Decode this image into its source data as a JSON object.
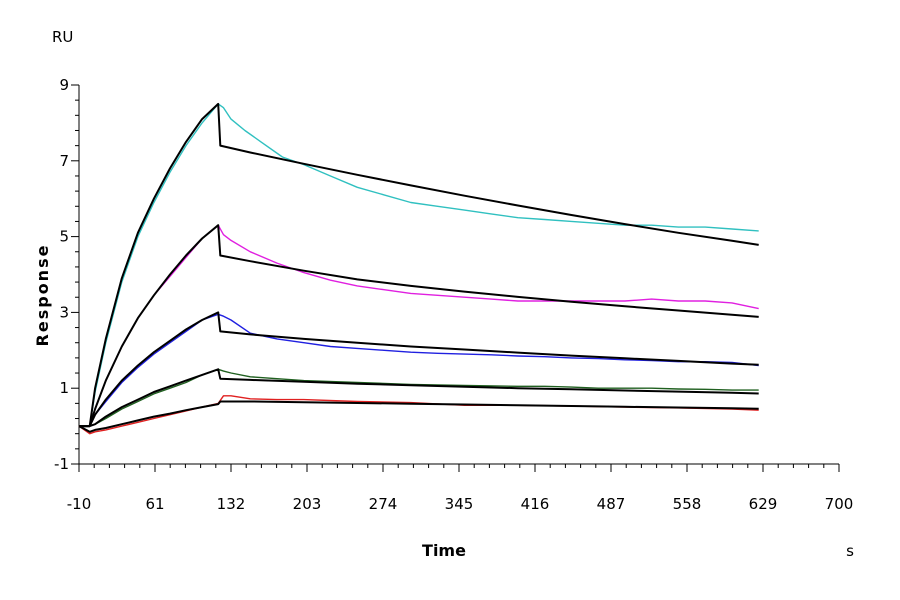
{
  "chart_data": {
    "type": "line",
    "xlabel": "Time",
    "ylabel": "Response",
    "y_unit": "RU",
    "x_unit": "s",
    "xlim": [
      -10,
      700
    ],
    "ylim": [
      -1,
      9
    ],
    "x_ticks": [
      -10,
      61,
      132,
      203,
      274,
      345,
      416,
      487,
      558,
      629,
      700
    ],
    "y_ticks": [
      -1,
      1,
      3,
      5,
      7,
      9
    ],
    "grid": false,
    "legend": "none",
    "series": [
      {
        "color": "#30c0c0",
        "kind": "measured",
        "points": [
          [
            -10,
            0
          ],
          [
            0,
            0
          ],
          [
            5,
            0.9
          ],
          [
            15,
            2.2
          ],
          [
            30,
            3.8
          ],
          [
            45,
            5.0
          ],
          [
            60,
            5.9
          ],
          [
            75,
            6.7
          ],
          [
            90,
            7.4
          ],
          [
            105,
            8.0
          ],
          [
            120,
            8.5
          ],
          [
            125,
            8.4
          ],
          [
            132,
            8.1
          ],
          [
            145,
            7.8
          ],
          [
            160,
            7.5
          ],
          [
            180,
            7.1
          ],
          [
            200,
            6.9
          ],
          [
            225,
            6.6
          ],
          [
            250,
            6.3
          ],
          [
            275,
            6.1
          ],
          [
            300,
            5.9
          ],
          [
            325,
            5.8
          ],
          [
            350,
            5.7
          ],
          [
            375,
            5.6
          ],
          [
            400,
            5.5
          ],
          [
            425,
            5.45
          ],
          [
            450,
            5.4
          ],
          [
            475,
            5.35
          ],
          [
            500,
            5.3
          ],
          [
            525,
            5.3
          ],
          [
            550,
            5.25
          ],
          [
            575,
            5.25
          ],
          [
            600,
            5.2
          ],
          [
            625,
            5.15
          ]
        ]
      },
      {
        "color": "#000000",
        "kind": "fit",
        "points": [
          [
            -10,
            0
          ],
          [
            0,
            0
          ],
          [
            5,
            1.0
          ],
          [
            15,
            2.3
          ],
          [
            30,
            3.9
          ],
          [
            45,
            5.1
          ],
          [
            60,
            6.0
          ],
          [
            75,
            6.8
          ],
          [
            90,
            7.5
          ],
          [
            105,
            8.1
          ],
          [
            120,
            8.5
          ],
          [
            122,
            7.4
          ],
          [
            150,
            7.22
          ],
          [
            200,
            6.92
          ],
          [
            250,
            6.63
          ],
          [
            300,
            6.35
          ],
          [
            350,
            6.08
          ],
          [
            400,
            5.82
          ],
          [
            450,
            5.57
          ],
          [
            500,
            5.33
          ],
          [
            550,
            5.1
          ],
          [
            600,
            4.89
          ],
          [
            625,
            4.78
          ]
        ]
      },
      {
        "color": "#e020e0",
        "kind": "measured",
        "points": [
          [
            -10,
            0
          ],
          [
            0,
            0
          ],
          [
            5,
            0.45
          ],
          [
            15,
            1.2
          ],
          [
            30,
            2.1
          ],
          [
            45,
            2.85
          ],
          [
            60,
            3.45
          ],
          [
            75,
            3.95
          ],
          [
            90,
            4.45
          ],
          [
            105,
            4.95
          ],
          [
            120,
            5.3
          ],
          [
            125,
            5.05
          ],
          [
            132,
            4.9
          ],
          [
            150,
            4.6
          ],
          [
            175,
            4.3
          ],
          [
            200,
            4.05
          ],
          [
            225,
            3.85
          ],
          [
            250,
            3.7
          ],
          [
            275,
            3.6
          ],
          [
            300,
            3.5
          ],
          [
            325,
            3.45
          ],
          [
            350,
            3.4
          ],
          [
            375,
            3.35
          ],
          [
            400,
            3.3
          ],
          [
            425,
            3.3
          ],
          [
            450,
            3.3
          ],
          [
            475,
            3.3
          ],
          [
            500,
            3.3
          ],
          [
            525,
            3.35
          ],
          [
            550,
            3.3
          ],
          [
            575,
            3.3
          ],
          [
            600,
            3.25
          ],
          [
            625,
            3.1
          ]
        ]
      },
      {
        "color": "#000000",
        "kind": "fit",
        "points": [
          [
            -10,
            0
          ],
          [
            0,
            0
          ],
          [
            5,
            0.45
          ],
          [
            15,
            1.2
          ],
          [
            30,
            2.1
          ],
          [
            45,
            2.85
          ],
          [
            60,
            3.45
          ],
          [
            75,
            4.0
          ],
          [
            90,
            4.5
          ],
          [
            105,
            4.95
          ],
          [
            120,
            5.3
          ],
          [
            122,
            4.5
          ],
          [
            150,
            4.35
          ],
          [
            200,
            4.1
          ],
          [
            250,
            3.87
          ],
          [
            300,
            3.7
          ],
          [
            350,
            3.55
          ],
          [
            400,
            3.41
          ],
          [
            450,
            3.28
          ],
          [
            500,
            3.16
          ],
          [
            550,
            3.05
          ],
          [
            600,
            2.94
          ],
          [
            625,
            2.88
          ]
        ]
      },
      {
        "color": "#2020e0",
        "kind": "measured",
        "points": [
          [
            -10,
            0
          ],
          [
            0,
            0
          ],
          [
            5,
            0.3
          ],
          [
            15,
            0.65
          ],
          [
            30,
            1.15
          ],
          [
            45,
            1.55
          ],
          [
            60,
            1.9
          ],
          [
            75,
            2.2
          ],
          [
            90,
            2.5
          ],
          [
            105,
            2.8
          ],
          [
            120,
            2.95
          ],
          [
            125,
            2.9
          ],
          [
            132,
            2.8
          ],
          [
            150,
            2.45
          ],
          [
            175,
            2.3
          ],
          [
            200,
            2.2
          ],
          [
            225,
            2.1
          ],
          [
            250,
            2.05
          ],
          [
            275,
            2.0
          ],
          [
            300,
            1.95
          ],
          [
            325,
            1.92
          ],
          [
            350,
            1.9
          ],
          [
            375,
            1.88
          ],
          [
            400,
            1.85
          ],
          [
            425,
            1.83
          ],
          [
            450,
            1.8
          ],
          [
            475,
            1.78
          ],
          [
            500,
            1.75
          ],
          [
            525,
            1.73
          ],
          [
            550,
            1.7
          ],
          [
            575,
            1.7
          ],
          [
            600,
            1.68
          ],
          [
            625,
            1.6
          ]
        ]
      },
      {
        "color": "#000000",
        "kind": "fit",
        "points": [
          [
            -10,
            0
          ],
          [
            0,
            0
          ],
          [
            5,
            0.3
          ],
          [
            15,
            0.7
          ],
          [
            30,
            1.2
          ],
          [
            45,
            1.6
          ],
          [
            60,
            1.95
          ],
          [
            75,
            2.25
          ],
          [
            90,
            2.55
          ],
          [
            105,
            2.8
          ],
          [
            120,
            3.0
          ],
          [
            122,
            2.5
          ],
          [
            150,
            2.42
          ],
          [
            200,
            2.3
          ],
          [
            250,
            2.2
          ],
          [
            300,
            2.1
          ],
          [
            350,
            2.02
          ],
          [
            400,
            1.94
          ],
          [
            450,
            1.86
          ],
          [
            500,
            1.79
          ],
          [
            550,
            1.72
          ],
          [
            600,
            1.65
          ],
          [
            625,
            1.62
          ]
        ]
      },
      {
        "color": "#206020",
        "kind": "measured",
        "points": [
          [
            -10,
            0
          ],
          [
            0,
            0
          ],
          [
            5,
            0.05
          ],
          [
            15,
            0.2
          ],
          [
            30,
            0.45
          ],
          [
            45,
            0.65
          ],
          [
            60,
            0.85
          ],
          [
            75,
            1.0
          ],
          [
            90,
            1.15
          ],
          [
            105,
            1.35
          ],
          [
            120,
            1.5
          ],
          [
            125,
            1.45
          ],
          [
            132,
            1.4
          ],
          [
            150,
            1.3
          ],
          [
            175,
            1.25
          ],
          [
            200,
            1.2
          ],
          [
            250,
            1.15
          ],
          [
            300,
            1.1
          ],
          [
            350,
            1.07
          ],
          [
            400,
            1.05
          ],
          [
            425,
            1.05
          ],
          [
            450,
            1.03
          ],
          [
            475,
            1.0
          ],
          [
            500,
            1.0
          ],
          [
            525,
            1.0
          ],
          [
            550,
            0.98
          ],
          [
            575,
            0.97
          ],
          [
            600,
            0.95
          ],
          [
            625,
            0.95
          ]
        ]
      },
      {
        "color": "#000000",
        "kind": "fit",
        "points": [
          [
            -10,
            0
          ],
          [
            0,
            0
          ],
          [
            5,
            0.05
          ],
          [
            15,
            0.25
          ],
          [
            30,
            0.5
          ],
          [
            45,
            0.7
          ],
          [
            60,
            0.9
          ],
          [
            75,
            1.05
          ],
          [
            90,
            1.2
          ],
          [
            105,
            1.35
          ],
          [
            120,
            1.5
          ],
          [
            122,
            1.25
          ],
          [
            150,
            1.22
          ],
          [
            200,
            1.17
          ],
          [
            250,
            1.12
          ],
          [
            300,
            1.08
          ],
          [
            350,
            1.04
          ],
          [
            400,
            1.0
          ],
          [
            450,
            0.97
          ],
          [
            500,
            0.94
          ],
          [
            550,
            0.91
          ],
          [
            600,
            0.88
          ],
          [
            625,
            0.86
          ]
        ]
      },
      {
        "color": "#e02020",
        "kind": "measured",
        "points": [
          [
            -10,
            0
          ],
          [
            0,
            -0.2
          ],
          [
            5,
            -0.15
          ],
          [
            15,
            -0.1
          ],
          [
            30,
            0.0
          ],
          [
            45,
            0.1
          ],
          [
            60,
            0.2
          ],
          [
            75,
            0.3
          ],
          [
            90,
            0.4
          ],
          [
            105,
            0.5
          ],
          [
            120,
            0.6
          ],
          [
            125,
            0.8
          ],
          [
            132,
            0.8
          ],
          [
            150,
            0.72
          ],
          [
            175,
            0.7
          ],
          [
            200,
            0.7
          ],
          [
            250,
            0.65
          ],
          [
            300,
            0.62
          ],
          [
            350,
            0.55
          ],
          [
            400,
            0.55
          ],
          [
            450,
            0.53
          ],
          [
            500,
            0.5
          ],
          [
            550,
            0.48
          ],
          [
            600,
            0.45
          ],
          [
            625,
            0.42
          ]
        ]
      },
      {
        "color": "#000000",
        "kind": "fit",
        "points": [
          [
            -10,
            0
          ],
          [
            0,
            -0.15
          ],
          [
            5,
            -0.1
          ],
          [
            15,
            -0.05
          ],
          [
            30,
            0.05
          ],
          [
            45,
            0.15
          ],
          [
            60,
            0.25
          ],
          [
            75,
            0.33
          ],
          [
            90,
            0.42
          ],
          [
            105,
            0.5
          ],
          [
            120,
            0.58
          ],
          [
            122,
            0.65
          ],
          [
            150,
            0.65
          ],
          [
            200,
            0.63
          ],
          [
            250,
            0.61
          ],
          [
            300,
            0.59
          ],
          [
            350,
            0.57
          ],
          [
            400,
            0.55
          ],
          [
            450,
            0.53
          ],
          [
            500,
            0.51
          ],
          [
            550,
            0.49
          ],
          [
            600,
            0.47
          ],
          [
            625,
            0.46
          ]
        ]
      }
    ]
  }
}
